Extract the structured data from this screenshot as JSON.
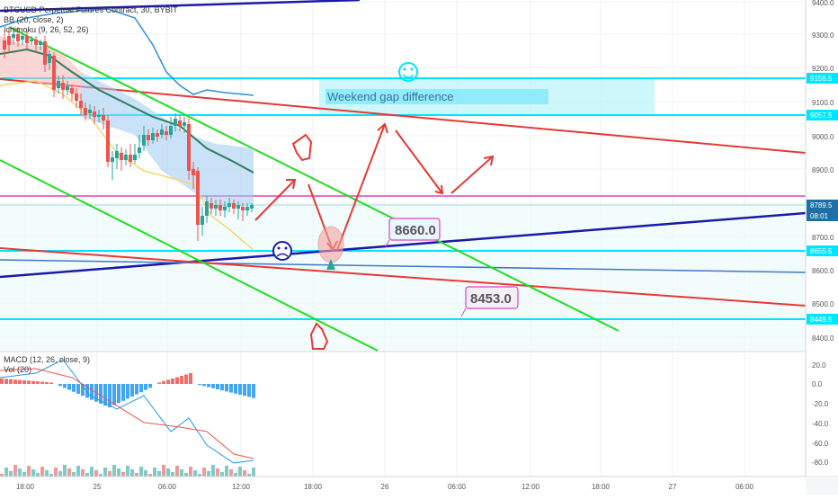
{
  "header": {
    "symbol_line": "BTCUSD Perpetual Futures Contract, 30, BYBIT",
    "bb_label": "BB (20, close, 2)",
    "ichimoku_label": "Ichimoku (9, 26, 52, 26)"
  },
  "price_axis": {
    "ticks": [
      "9400.0",
      "9300.0",
      "9200.0",
      "9100.0",
      "9000.0",
      "8900.0",
      "8800.0",
      "8700.0",
      "8600.0",
      "8500.0",
      "8400.0"
    ],
    "badges": [
      {
        "text": "9156.5",
        "color": "#ffffff",
        "bg": "#00e5ff"
      },
      {
        "text": "9057.5",
        "color": "#ffffff",
        "bg": "#00e5ff"
      },
      {
        "text": "8789.5",
        "color": "#ffffff",
        "bg": "#1d6fa5"
      },
      {
        "text": "08:01",
        "color": "#ffffff",
        "bg": "#1d6fa5"
      },
      {
        "text": "8655.5",
        "color": "#ffffff",
        "bg": "#00e5ff"
      },
      {
        "text": "8449.5",
        "color": "#ffffff",
        "bg": "#00e5ff"
      }
    ]
  },
  "annotations": {
    "gap_text": "Weekend gap difference",
    "label_a": "8660.0",
    "label_b": "8453.0"
  },
  "macd": {
    "label": "MACD (12, 26, close, 9)",
    "vol_label": "Vol (20)",
    "ticks": [
      "20.0",
      "0.0",
      "-20.0",
      "-40.0",
      "-60.0",
      "-80.0"
    ]
  },
  "time_axis": {
    "ticks": [
      "18:00",
      "25",
      "06:00",
      "12:00",
      "18:00",
      "26",
      "06:00",
      "12:00",
      "18:00",
      "27",
      "06:00"
    ]
  },
  "colors": {
    "cyan": "#00e5ff",
    "red_line": "#e53935",
    "green_line": "#22dd22",
    "blue_line": "#1a1aaa",
    "magenta": "#e040c0",
    "bull": "#26a69a",
    "bear": "#ef5350"
  }
}
